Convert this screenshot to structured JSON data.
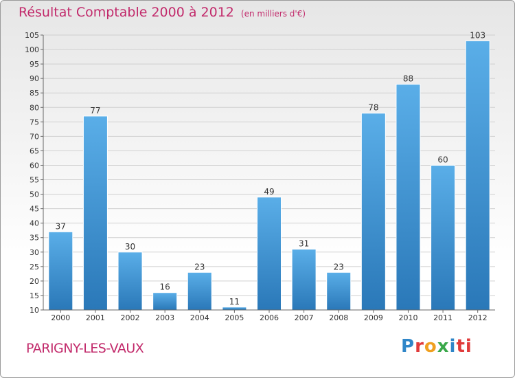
{
  "chart_data": {
    "type": "bar",
    "title": "Résultat Comptable 2000 à 2012",
    "subtitle": "(en milliers d'€)",
    "categories": [
      "2000",
      "2001",
      "2002",
      "2003",
      "2004",
      "2005",
      "2006",
      "2007",
      "2008",
      "2009",
      "2010",
      "2011",
      "2012"
    ],
    "values": [
      37,
      77,
      30,
      16,
      23,
      11,
      49,
      31,
      23,
      78,
      88,
      60,
      103
    ],
    "ylim": [
      10,
      105
    ],
    "yticks": [
      10,
      15,
      20,
      25,
      30,
      35,
      40,
      45,
      50,
      55,
      60,
      65,
      70,
      75,
      80,
      85,
      90,
      95,
      100,
      105
    ],
    "grid": true,
    "colors": {
      "bar_top": "#5aaee8",
      "bar_bottom": "#2a78b8",
      "title": "#c22a6b"
    }
  },
  "footer": {
    "commune": "PARIGNY-LES-VAUX",
    "logo_letters": [
      "P",
      "r",
      "o",
      "x",
      "i",
      "ti"
    ]
  }
}
